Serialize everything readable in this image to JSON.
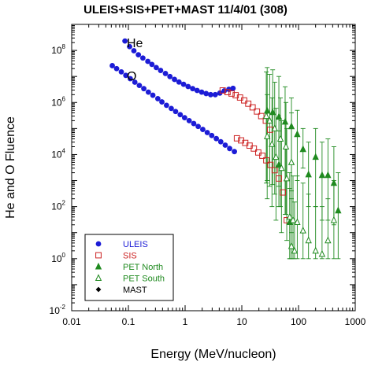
{
  "chart_data": {
    "type": "scatter",
    "title": "ULEIS+SIS+PET+MAST 11/4/01 (308)",
    "xlabel": "Energy (MeV/nucleon)",
    "ylabel": "He and O Fluence",
    "x_scale": "log",
    "y_scale": "log",
    "xlim": [
      0.01,
      1000
    ],
    "ylim": [
      0.01,
      1000000000
    ],
    "x_ticks": [
      {
        "v": 0.01,
        "label": "0.01"
      },
      {
        "v": 0.1,
        "label": "0.1"
      },
      {
        "v": 1,
        "label": "1"
      },
      {
        "v": 10,
        "label": "10"
      },
      {
        "v": 100,
        "label": "100"
      },
      {
        "v": 1000,
        "label": "1000"
      }
    ],
    "y_ticks": [
      {
        "v": 0.01,
        "base": "10",
        "exp": "-2"
      },
      {
        "v": 1,
        "base": "10",
        "exp": "0"
      },
      {
        "v": 100,
        "base": "10",
        "exp": "2"
      },
      {
        "v": 10000,
        "base": "10",
        "exp": "4"
      },
      {
        "v": 1000000,
        "base": "10",
        "exp": "6"
      },
      {
        "v": 100000000,
        "base": "10",
        "exp": "8"
      }
    ],
    "annotations": [
      {
        "text": "He",
        "x": 0.1,
        "y": 200000000
      },
      {
        "text": "O",
        "x": 0.1,
        "y": 11000000
      }
    ],
    "legend_position": "bottom-left",
    "series": [
      {
        "name": "ULEIS",
        "marker": "circle",
        "color": "#1c1cd6",
        "points": [
          [
            0.087,
            230000000
          ],
          [
            0.105,
            140000000
          ],
          [
            0.125,
            97000000
          ],
          [
            0.15,
            68000000
          ],
          [
            0.18,
            51000000
          ],
          [
            0.22,
            38000000
          ],
          [
            0.26,
            29000000
          ],
          [
            0.31,
            22000000
          ],
          [
            0.37,
            17000000
          ],
          [
            0.45,
            13000000
          ],
          [
            0.54,
            9900000
          ],
          [
            0.65,
            7700000
          ],
          [
            0.78,
            6100000
          ],
          [
            0.94,
            5000000
          ],
          [
            1.13,
            4100000
          ],
          [
            1.36,
            3400000
          ],
          [
            1.63,
            2900000
          ],
          [
            1.96,
            2500000
          ],
          [
            2.35,
            2200000
          ],
          [
            2.82,
            2000000
          ],
          [
            3.4,
            2000000
          ],
          [
            4.1,
            2300000
          ],
          [
            4.9,
            2800000
          ],
          [
            5.9,
            3200000
          ],
          [
            7.0,
            3500000
          ],
          [
            0.052,
            26000000
          ],
          [
            0.062,
            20000000
          ],
          [
            0.075,
            15000000
          ],
          [
            0.09,
            11000000
          ],
          [
            0.108,
            8200000
          ],
          [
            0.13,
            6000000
          ],
          [
            0.156,
            4500000
          ],
          [
            0.187,
            3400000
          ],
          [
            0.225,
            2500000
          ],
          [
            0.27,
            1900000
          ],
          [
            0.33,
            1400000
          ],
          [
            0.39,
            1050000
          ],
          [
            0.47,
            780000
          ],
          [
            0.57,
            590000
          ],
          [
            0.68,
            450000
          ],
          [
            0.82,
            340000
          ],
          [
            0.98,
            260000
          ],
          [
            1.18,
            200000
          ],
          [
            1.42,
            155000
          ],
          [
            1.7,
            120000
          ],
          [
            2.05,
            92000
          ],
          [
            2.46,
            70000
          ],
          [
            2.95,
            54000
          ],
          [
            3.55,
            41000
          ],
          [
            4.25,
            31000
          ],
          [
            5.1,
            23000
          ],
          [
            6.1,
            17000
          ],
          [
            7.4,
            13000
          ]
        ]
      },
      {
        "name": "SIS",
        "marker": "square-open",
        "color": "#cc2222",
        "points": [
          [
            4.6,
            2900000
          ],
          [
            5.6,
            2500000
          ],
          [
            6.6,
            2200000
          ],
          [
            7.8,
            1900000
          ],
          [
            9.3,
            1550000
          ],
          [
            11.0,
            1200000
          ],
          [
            13.0,
            900000
          ],
          [
            15.5,
            650000
          ],
          [
            18.5,
            450000
          ],
          [
            22.0,
            300000
          ],
          [
            26.5,
            200000
          ],
          [
            31.5,
            90000
          ],
          [
            8.2,
            42000
          ],
          [
            9.7,
            35000
          ],
          [
            11.5,
            28000
          ],
          [
            13.7,
            22000
          ],
          [
            16.3,
            17000
          ],
          [
            19.5,
            12000
          ],
          [
            23.0,
            9000
          ],
          [
            27.0,
            6000
          ],
          [
            32.0,
            4000
          ],
          [
            38.0,
            2500
          ],
          [
            45.0,
            1200
          ],
          [
            53.0,
            350
          ],
          [
            62.0,
            30
          ]
        ]
      },
      {
        "name": "PET North",
        "marker": "triangle-filled",
        "color": "#1f8a1f",
        "points": [
          [
            28,
            480000,
            22000000,
            1000
          ],
          [
            35,
            420000,
            18000000,
            700
          ],
          [
            45,
            280000,
            10000000,
            600
          ],
          [
            58,
            180000,
            4000000,
            50
          ],
          [
            75,
            120000,
            1500000,
            400
          ],
          [
            95,
            60000,
            500000,
            1000
          ],
          [
            120,
            16000,
            100000,
            3000
          ],
          [
            150,
            1700,
            30000,
            100
          ],
          [
            200,
            8000,
            100000,
            100
          ],
          [
            260,
            1600,
            30000,
            30
          ],
          [
            330,
            1600,
            40000,
            30
          ],
          [
            420,
            800,
            20000,
            20
          ],
          [
            500,
            70,
            2000,
            1
          ],
          [
            70,
            25,
            500,
            1
          ],
          [
            45,
            4000,
            80000,
            100
          ]
        ]
      },
      {
        "name": "PET South",
        "marker": "triangle-open",
        "color": "#1f8a1f",
        "points": [
          [
            27,
            300000,
            15000000,
            800
          ],
          [
            31,
            200000,
            12000000,
            600
          ],
          [
            38,
            100000,
            6000000,
            300
          ],
          [
            48,
            40000,
            1500000,
            100
          ],
          [
            60,
            20000,
            1000000,
            50
          ],
          [
            75,
            5000,
            400000,
            10
          ],
          [
            28,
            50000,
            2000000,
            200
          ],
          [
            34,
            25000,
            1500000,
            100
          ],
          [
            40,
            8000,
            600000,
            30
          ],
          [
            50,
            3000,
            200000,
            10
          ],
          [
            62,
            1200,
            100000,
            5
          ],
          [
            70,
            40,
            2000,
            1
          ],
          [
            80,
            30,
            1500,
            1
          ],
          [
            95,
            25,
            1500,
            1
          ],
          [
            120,
            12,
            800,
            1
          ],
          [
            150,
            5,
            300,
            1
          ],
          [
            200,
            2,
            100,
            1
          ],
          [
            260,
            1.5,
            100,
            1
          ],
          [
            330,
            5,
            200,
            1
          ],
          [
            420,
            30,
            1000,
            1
          ],
          [
            75,
            3,
            200,
            1
          ],
          [
            85,
            2,
            150,
            1
          ]
        ]
      },
      {
        "name": "MAST",
        "marker": "diamond",
        "color": "#000000",
        "points": []
      }
    ]
  }
}
